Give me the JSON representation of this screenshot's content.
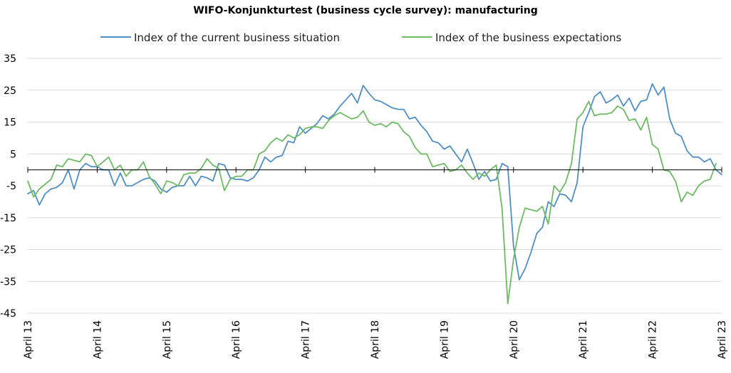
{
  "chart_data": {
    "type": "line",
    "title": "WIFO-Konjunkturtest (business cycle survey): manufacturing",
    "xlabel": "",
    "ylabel": "",
    "ylim": [
      -45,
      35
    ],
    "yticks": [
      35,
      25,
      15,
      5,
      -5,
      -15,
      -25,
      -35,
      -45
    ],
    "x_start": "April 13",
    "x_end": "April 23",
    "x_tick_labels": [
      "April 13",
      "April 14",
      "April 15",
      "April 16",
      "April 17",
      "April 18",
      "April 19",
      "April 20",
      "April 21",
      "April 22",
      "April 23"
    ],
    "grid": "horizontal",
    "legend_position": "top",
    "series": [
      {
        "name": "Index of the current business situation",
        "color": "#4f8fc6",
        "values": [
          -7.5,
          -6.5,
          -11,
          -7.5,
          -6,
          -5.5,
          -4,
          0,
          -6,
          0,
          2,
          1,
          1,
          0,
          0,
          -5,
          -1,
          -5,
          -5,
          -4,
          -3,
          -2.5,
          -3.5,
          -6,
          -7,
          -5.5,
          -5,
          -5,
          -2,
          -5,
          -2,
          -2.5,
          -3.5,
          2,
          1.5,
          -2.5,
          -3,
          -3,
          -3.5,
          -2.5,
          0,
          4,
          2.5,
          4,
          4.5,
          9,
          8.5,
          13.5,
          11.5,
          13,
          14.5,
          17,
          16,
          17.5,
          20,
          22,
          24,
          21,
          26.5,
          24,
          22,
          21.5,
          20.5,
          19.5,
          19,
          19,
          16,
          16.5,
          14,
          12,
          9,
          8.5,
          6.5,
          7.5,
          5,
          2.5,
          6.5,
          2,
          -3,
          -0.5,
          -3.5,
          -3,
          2,
          1,
          -24,
          -34.5,
          -31,
          -26,
          -20,
          -18,
          -10,
          -11.5,
          -7.5,
          -8,
          -10,
          -4,
          13.5,
          18,
          23,
          24.5,
          21,
          22,
          23.5,
          20,
          22.5,
          18.5,
          21.5,
          22,
          27,
          23.5,
          26,
          16,
          11.5,
          10.5,
          6,
          4,
          4,
          2.5,
          3.5,
          0,
          -1.5
        ]
      },
      {
        "name": "Index of the business expectations",
        "color": "#6dbb63",
        "values": [
          -3.5,
          -8.5,
          -6,
          -4.5,
          -3,
          1.5,
          1,
          3.5,
          3,
          2.5,
          5,
          4.5,
          1,
          2.5,
          4,
          0,
          1.5,
          -2,
          0,
          0,
          2.5,
          -2,
          -4.5,
          -7.5,
          -3.5,
          -4,
          -5,
          -1.5,
          -1,
          -1,
          0.5,
          3.5,
          1.5,
          0.5,
          -6.5,
          -3,
          -2,
          -2,
          0,
          0,
          5,
          6,
          8.5,
          10,
          9,
          11,
          10,
          11,
          13,
          13.5,
          13.5,
          13,
          15.5,
          17,
          18,
          17,
          16,
          16.5,
          18.5,
          15,
          14,
          14.5,
          13.5,
          15,
          14.5,
          12,
          10.5,
          7,
          5,
          5,
          1,
          1.5,
          2,
          -0.5,
          0,
          1.5,
          -1,
          -3,
          -1,
          -2,
          0,
          1.5,
          -12,
          -42,
          -28,
          -18,
          -12,
          -12.5,
          -13,
          -11.5,
          -17,
          -5,
          -7,
          -4,
          2,
          16,
          18,
          21.5,
          17,
          17.5,
          17.5,
          18,
          20,
          19,
          15.5,
          16,
          12.5,
          16.5,
          8,
          6.5,
          0,
          -0.5,
          -3.5,
          -10,
          -7,
          -8,
          -5,
          -3.5,
          -3,
          2
        ]
      }
    ]
  }
}
